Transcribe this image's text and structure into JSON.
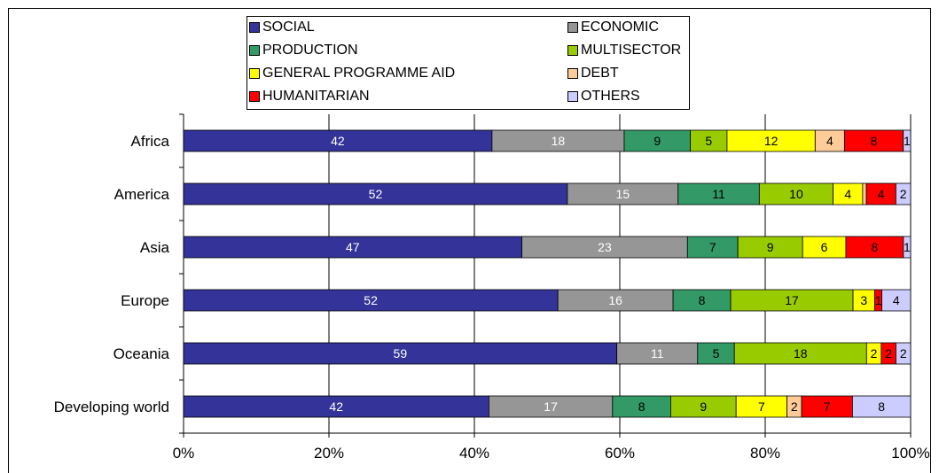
{
  "chart_data": {
    "type": "bar",
    "orientation": "horizontal",
    "stacked": true,
    "percent_stacked": true,
    "categories": [
      "Africa",
      "America",
      "Asia",
      "Europe",
      "Oceania",
      "Developing world"
    ],
    "series": [
      {
        "name": "SOCIAL",
        "color": "#333399",
        "values": [
          42,
          52,
          47,
          52,
          59,
          42
        ]
      },
      {
        "name": "ECONOMIC",
        "color": "#969696",
        "values": [
          18,
          15,
          23,
          16,
          11,
          17
        ]
      },
      {
        "name": "PRODUCTION",
        "color": "#339966",
        "values": [
          9,
          11,
          7,
          8,
          5,
          8
        ]
      },
      {
        "name": "MULTISECTOR",
        "color": "#99CC00",
        "values": [
          5,
          10,
          9,
          17,
          18,
          9
        ]
      },
      {
        "name": "GENERAL PROGRAMME AID",
        "color": "#FFFF00",
        "values": [
          12,
          4,
          6,
          3,
          2,
          7
        ]
      },
      {
        "name": "DEBT",
        "color": "#FFCC99",
        "values": [
          4,
          0.5,
          0,
          0,
          0,
          2
        ]
      },
      {
        "name": "HUMANITARIAN",
        "color": "#FF0000",
        "values": [
          8,
          4,
          8,
          1,
          2,
          7
        ]
      },
      {
        "name": "OTHERS",
        "color": "#CCCCFF",
        "values": [
          1,
          2,
          1,
          4,
          2,
          8
        ]
      }
    ],
    "data_labels": [
      [
        "42",
        "18",
        "9",
        "5",
        "12",
        "4",
        "8",
        "1"
      ],
      [
        "52",
        "15",
        "11",
        "10",
        "4",
        "",
        "4",
        "2"
      ],
      [
        "47",
        "23",
        "7",
        "9",
        "6",
        "",
        "8",
        "1"
      ],
      [
        "52",
        "16",
        "8",
        "17",
        "3",
        "",
        "1",
        "4"
      ],
      [
        "59",
        "11",
        "5",
        "18",
        "2",
        "",
        "2",
        "2"
      ],
      [
        "42",
        "17",
        "8",
        "9",
        "7",
        "2",
        "7",
        "8"
      ]
    ],
    "label_colors": [
      "#FFFFFF",
      "#FFFFFF",
      "#000000",
      "#000000",
      "#000000",
      "#000000",
      "#000000",
      "#000000"
    ],
    "xlim": [
      0,
      100
    ],
    "xticks": [
      "0%",
      "20%",
      "40%",
      "60%",
      "80%",
      "100%"
    ],
    "grid": "vertical",
    "legend_position": "top",
    "title": "",
    "xlabel": "",
    "ylabel": ""
  }
}
